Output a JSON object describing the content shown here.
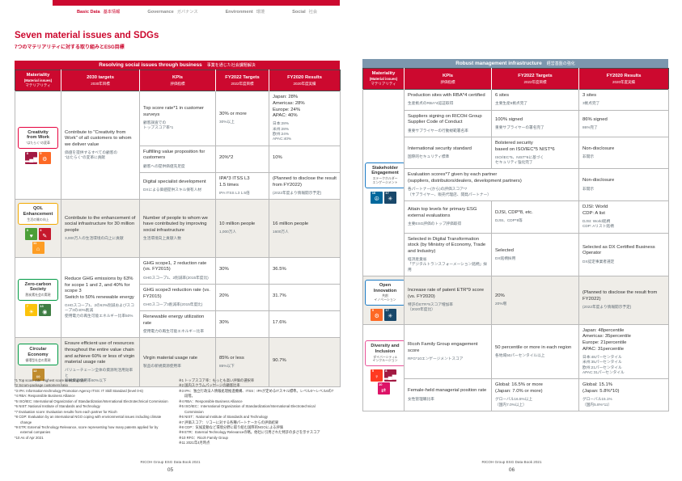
{
  "colors": {
    "brand_red": "#cc092f",
    "band_blue": "#7c97ae",
    "shaded_row": "#efede8"
  },
  "nav": {
    "items": [
      {
        "en": "Basic Data",
        "ja": "基本情報",
        "active": true
      },
      {
        "en": "Governance",
        "ja": "ガバナンス",
        "active": false
      },
      {
        "en": "Environment",
        "ja": "環境",
        "active": false
      },
      {
        "en": "Social",
        "ja": "社会",
        "active": false
      }
    ]
  },
  "title": {
    "en": "Seven material issues and SDGs",
    "ja": "7つのマテリアリティに対する取り組みとESG目標"
  },
  "table_headers": {
    "materiality_en": "Materiality",
    "materiality_sub": "(Material issues)",
    "materiality_ja": "マテリアリティ",
    "t2030_en": "2030 targets",
    "t2030_ja": "2030年目標",
    "kpi_en": "KPIs",
    "kpi_ja": "評価指標",
    "fy22_en": "FY2022 Targets",
    "fy22_ja": "2022年度目標",
    "fy20_en": "FY2020 Results",
    "fy20_ja": "2020年度実績"
  },
  "page_left": {
    "band_en": "Resolving social issues through business",
    "band_ja": "事業を通じた社会課題解決",
    "groups": [
      {
        "label_en": "Creativity\nfrom Work",
        "label_ja": "\"はたらく\"の変革",
        "border_color": "#e6003d",
        "shaded": false,
        "sdgs": [
          {
            "num": 8,
            "color": "#A21942",
            "glyph": "▂▄▆"
          },
          {
            "num": 9,
            "color": "#FD6925",
            "glyph": "⚙"
          }
        ],
        "target2030_en": "Contribute to \"Creativity from Work\" of all customers to whom we deliver value",
        "target2030_ja": "価値を提供するすべての顧客の\n\"はたらく\"の変革に貢献",
        "rows": [
          {
            "kpi_en": "Top score rate*1 in customer surveys",
            "kpi_ja": "顧客調査での\nトップスコア率*1",
            "target_en": "30% or more",
            "target_ja": "30%以上",
            "result_en": "Japan: 28%\nAmericas: 28%\nEurope: 24%\nAPAC: 40%",
            "result_ja": "日本:28%\n米州:28%\n欧州:24%\nAPAC:40%"
          },
          {
            "kpi_en": "Fulfilling value proposition for customers",
            "kpi_ja": "顧客への提供価値充足度",
            "target_en": "20%*2",
            "target_ja": "",
            "result_en": "10%",
            "result_ja": ""
          },
          {
            "kpi_en": "Digital specialist development",
            "kpi_ja": "DXによる価値提供スキル保有人材",
            "target_en": "IPA*3 ITSS L3\n1.5 times",
            "target_ja": "IPA ITSS L3 1.5倍",
            "result_en": "(Planned to disclose the result from FY2022)",
            "result_ja": "(2022年度より情報開示予定)"
          }
        ]
      },
      {
        "label_en": "QOL\nEnhancement",
        "label_ja": "生活の質の向上",
        "border_color": "#f2a900",
        "shaded": true,
        "sdgs": [
          {
            "num": 3,
            "color": "#4C9F38",
            "glyph": "♥"
          },
          {
            "num": 4,
            "color": "#C5192D",
            "glyph": "✎"
          },
          {
            "num": 11,
            "color": "#FD9D24",
            "glyph": "⌂"
          }
        ],
        "target2030_en": "Contribute to the enhancement of social infrastructure for 30 million people",
        "target2030_ja": "3,000万人の生活環境の向上に貢献",
        "rows": [
          {
            "kpi_en": "Number of people to whom we have contributed by improving social infrastructure",
            "kpi_ja": "生活環境向上貢献人数",
            "target_en": "10 million people",
            "target_ja": "1,000万人",
            "result_en": "16 million people",
            "result_ja": "1600万人"
          }
        ]
      },
      {
        "label_en": "Zero-carbon\nSociety",
        "label_ja": "脱炭素社会の実現",
        "border_color": "#009a44",
        "shaded": false,
        "sdgs": [
          {
            "num": 7,
            "color": "#FCC30B",
            "glyph": "☀"
          },
          {
            "num": 13,
            "color": "#3F7E44",
            "glyph": "◉"
          }
        ],
        "target2030_en": "Reduce GHG emissions by 63% for scope 1 and 2, and 40% for scope 3\nSwitch to 50% renewable energy",
        "target2030_ja": "GHGスコープ1、2の63%削減およびスコープ3の40%削減\n使用電力の再生可能エネルギー比率50%",
        "rows": [
          {
            "kpi_en": "GHG scope1, 2 reduction rate (vs. FY2015)",
            "kpi_ja": "GHGスコープ1、2削減率(2015年度比)",
            "target_en": "30%",
            "target_ja": "",
            "result_en": "36.5%",
            "result_ja": ""
          },
          {
            "kpi_en": "GHG scope3 reduction rate (vs. FY2015)",
            "kpi_ja": "GHGスコープ3削減率(2015年度比)",
            "target_en": "20%",
            "target_ja": "",
            "result_en": "31.7%",
            "result_ja": ""
          },
          {
            "kpi_en": "Renewable energy utilization rate",
            "kpi_ja": "使用電力の再生可能エネルギー比率",
            "target_en": "30%",
            "target_ja": "",
            "result_en": "17.6%",
            "result_ja": ""
          }
        ]
      },
      {
        "label_en": "Circular\nEconomy",
        "label_ja": "循環型社会の実現",
        "border_color": "#009a44",
        "shaded": true,
        "sdgs": [
          {
            "num": 12,
            "color": "#BF8B2E",
            "glyph": "∞"
          }
        ],
        "target2030_en": "Ensure efficient use of resources throughout the entire value chain and achieve 60% or less of virgin material usage rate",
        "target2030_ja": "バリューチェーン全体の資源利活用効率と\n新規資源使用率60%以下",
        "rows": [
          {
            "kpi_en": "Virgin material usage rate",
            "kpi_ja": "製品の新規資源使用率",
            "target_en": "85% or less",
            "target_ja": "85%以下",
            "result_en": "90.7%",
            "result_ja": ""
          }
        ]
      }
    ],
    "footnotes_en": [
      "*1 Top score rate: Highest score selecting rate",
      "*2 Scrum-package customers ratio",
      "*3 IPA: Information-technology Promotion Agency ITSS: IT Skill Standard (level 0-6)",
      "*4 RBA: Responsible Business Alliance",
      "*5 ISO/IEC: International Organization of Standardization/International Electrotechnical Commission",
      "*6 NIST: National Institute of Standards and Technology",
      "*7 Evaluation score: Evaluation results from each partner for Ricoh",
      "*8 CDP: Evaluation by an international NGO coping with environmental issues including climate change",
      "*9 ETR: External Technology Relevance, score representing how many patents applied for by external companies",
      "*10 As of Apr 2021"
    ],
    "footnotes_ja": [
      "※1 トップスコア率：もっとも高い評価の選択率",
      "※2 国内スクラムパッケージの顧客比率",
      "※3 IPA：独立行政法人情報処理推進機構、ITSS：IPAが定めるITスキル標準。レベル0〜レベル6の7段階。",
      "※4 RBA：Responsible Business Alliance",
      "※5 ISO/IEC：International Organization of Standardization/International Electrotechnical Commission",
      "※6 NIST：National Institute of Standards and Technology",
      "※7 評価スコア：リコーに対する各種パートナーからの評価結果",
      "※8 CDP：気候変動など環境分野に取り組む国際的NGOによる評価",
      "※9 ETR：External Technology Relevanceの略。他社に引用された特許の多さを示すスコア",
      "※10 RFG：Ricoh Family Group",
      "※11 2021年4月時点"
    ],
    "footer": {
      "book": "RICOH Group ESG Data Book 2021",
      "page": "05"
    }
  },
  "page_right": {
    "band_en": "Robust management infrastructure",
    "band_ja": "経営基盤の強化",
    "groups": [
      {
        "label_en": "Stakeholder\nEngagement",
        "label_ja": "ステークホルダー\nエンゲージメント",
        "border_color": "#1b7ac4",
        "shaded": false,
        "sdgs": [
          {
            "num": 16,
            "color": "#00689D",
            "glyph": "☮"
          },
          {
            "num": 17,
            "color": "#19486A",
            "glyph": "✳"
          }
        ],
        "rows": [
          {
            "kpi_en": "Production sites with RBA*4 certified",
            "kpi_ja": "生産拠点のRBA*4認証取得",
            "target_en": "6 sites",
            "target_ja": "主要生産6拠点完了",
            "result_en": "3 sites",
            "result_ja": "3拠点完了"
          },
          {
            "kpi_en": "Suppliers signing on RICOH Group Supplier Code of Conduct",
            "kpi_ja": "重要サプライヤーの行動規範署名率",
            "target_en": "100% signed",
            "target_ja": "重要サプライヤーの署名完了",
            "result_en": "86% signed",
            "result_ja": "86%完了"
          },
          {
            "kpi_en": "International security standard",
            "kpi_ja": "国際的セキュリティ標準",
            "target_en": "Bolstered security\nbased on ISO/IEC*5 NIST*6",
            "target_ja": "ISO/IEC*5、NIST*6に基づく\nセキュリティ強化完了",
            "result_en": "Non-disclosure",
            "result_ja": "非開示"
          },
          {
            "merged": true,
            "kpi_en": "Evaluation scores*7 given by each partner\n(suppliers, distributors/dealers, development partners)",
            "kpi_ja": "各パートナー(から)の評価スコア*7\n（サプライヤー、販売代理店、開発パートナー）",
            "target_en": "",
            "target_ja": "",
            "result_en": "Non-disclosure",
            "result_ja": "非開示"
          },
          {
            "kpi_en": "Attain top levels for primary ESG external evaluations",
            "kpi_ja": "主要ESG評価のトップ評価取得",
            "target_en": "DJSI, CDP*8, etc.",
            "target_ja": "DJSI、CDP*8等",
            "result_en": "DJSI: World\nCDP: A list",
            "result_ja": "DJSI: World銘柄\nCDP: Aリスト銘柄"
          },
          {
            "kpi_en": "Selected in Digital Transformation stock (by Ministry of Economy, Trade and Industry)",
            "kpi_ja": "経済産業省\n「デジタルトランスフォーメーション銘柄」採用",
            "target_en": "Selected",
            "target_ja": "DX銘柄採用",
            "result_en": "Selected as DX Certified Business Operator",
            "result_ja": "DX認定事業者選定"
          }
        ]
      },
      {
        "label_en": "Open\nInnovation",
        "label_ja": "共創\nイノベーション",
        "border_color": "#1b7ac4",
        "shaded": true,
        "sdgs": [
          {
            "num": 9,
            "color": "#FD6925",
            "glyph": "⚙"
          },
          {
            "num": 17,
            "color": "#19486A",
            "glyph": "✳"
          }
        ],
        "rows": [
          {
            "kpi_en": "Increase rate of patent ETR*9 score (vs. FY2020)",
            "kpi_ja": "特許のETR*9スコア増加率\n（2020年度比）",
            "target_en": "20%",
            "target_ja": "20%増",
            "result_en": "(Planned to disclose the result from FY2022)",
            "result_ja": "(2022年度より情報開示予定)"
          }
        ]
      },
      {
        "label_en": "Diversity and\nInclusion",
        "label_ja": "ダイバーシティ&\nインクルージョン",
        "border_color": "#e85298",
        "shaded": false,
        "sdgs": [
          {
            "num": 5,
            "color": "#FF3A21",
            "glyph": "♀"
          },
          {
            "num": 8,
            "color": "#A21942",
            "glyph": "▂▄▆"
          },
          {
            "num": 10,
            "color": "#DD1367",
            "glyph": "⇄"
          }
        ],
        "rows": [
          {
            "kpi_en": "Ricoh Family Group engagement score",
            "kpi_ja": "RFG*10エンゲージメントスコア",
            "target_en": "50 percentile or more in each region",
            "target_ja": "各地域50パーセンタイル以上",
            "result_en": "Japan: 48percentile\nAmericas: 35percentile\nEurope: 21percentile\nAPAC: 31percentile",
            "result_ja": "日本:48パーセンタイル\n米州:35パーセンタイル\n欧州:21パーセンタイル\nAPAC:31パーセンタイル"
          },
          {
            "kpi_en": "Female-held managerial position rate",
            "kpi_ja": "女性管理職比率",
            "target_en": "Global: 16.5% or more\n(Japan: 7.0% or more)",
            "target_ja": "グローバル16.5%以上\n（国内7.0%以上）",
            "result_en": "Global: 15.1%\n(Japan: 5.8%*10)",
            "result_ja": "グローバル15.1%\n（国内5.8%*11）"
          }
        ]
      }
    ],
    "footer": {
      "book": "RICOH Group ESG Data Book 2021",
      "page": "06"
    }
  }
}
